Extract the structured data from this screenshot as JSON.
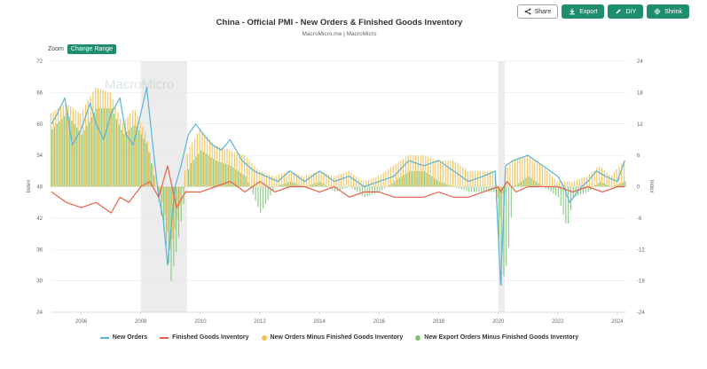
{
  "toolbar": {
    "share": {
      "label": "Share",
      "icon": "share-icon"
    },
    "export": {
      "label": "Export",
      "icon": "download-icon"
    },
    "diy": {
      "label": "DIY",
      "icon": "pencil-icon"
    },
    "shrink": {
      "label": "Shrink",
      "icon": "shrink-icon"
    }
  },
  "header": {
    "title": "China - Official PMI - New Orders & Finished Goods Inventory",
    "subtitle": "MacroMicro.me | MacroMicro"
  },
  "zoom": {
    "label": "Zoom",
    "button": "Change Range"
  },
  "watermark": "MacroMicro",
  "colors": {
    "new_orders": "#5ab4d6",
    "inventory": "#e8624a",
    "minus": "#f2c04d",
    "export_minus": "#7cc576",
    "recession": "#ececec",
    "grid": "#e6e6e6"
  },
  "chart_data": {
    "type": "line",
    "title": "China - Official PMI - New Orders & Finished Goods Inventory",
    "xlabel": "",
    "ylabel": "Index",
    "y2label": "Index",
    "xlim": [
      2005.0,
      2024.3
    ],
    "ylim": [
      24,
      72
    ],
    "y2lim": [
      -24,
      24
    ],
    "y_ticks": [
      24,
      30,
      36,
      42,
      48,
      54,
      60,
      66,
      72
    ],
    "y2_ticks": [
      -24,
      -18,
      -12,
      -6,
      0,
      6,
      12,
      18,
      24
    ],
    "x_ticks": [
      "2006",
      "2008",
      "2010",
      "2012",
      "2014",
      "2016",
      "2018",
      "2020",
      "2022",
      "2024"
    ],
    "x_tick_values": [
      2006,
      2008,
      2010,
      2012,
      2014,
      2016,
      2018,
      2020,
      2022,
      2024
    ],
    "grid": true,
    "legend_position": "bottom",
    "shaded_periods": [
      [
        2008.0,
        2009.55
      ],
      [
        2020.0,
        2020.22
      ]
    ],
    "series": [
      {
        "name": "New Orders",
        "axis": "left",
        "type": "line",
        "x": [
          2005.0,
          2005.2,
          2005.45,
          2005.7,
          2006.0,
          2006.3,
          2006.5,
          2006.75,
          2007.0,
          2007.3,
          2007.5,
          2007.75,
          2008.0,
          2008.2,
          2008.4,
          2008.6,
          2008.75,
          2008.9,
          2009.0,
          2009.15,
          2009.35,
          2009.6,
          2009.85,
          2010.1,
          2010.4,
          2010.7,
          2011.0,
          2011.4,
          2011.8,
          2012.2,
          2012.6,
          2013.0,
          2013.5,
          2014.0,
          2014.5,
          2015.0,
          2015.5,
          2016.0,
          2016.5,
          2017.0,
          2017.5,
          2018.0,
          2018.5,
          2019.0,
          2019.5,
          2019.9,
          2020.08,
          2020.25,
          2020.5,
          2021.0,
          2021.5,
          2022.0,
          2022.2,
          2022.4,
          2022.8,
          2023.0,
          2023.3,
          2023.6,
          2024.0,
          2024.25
        ],
        "y": [
          60,
          62,
          65,
          56,
          59,
          64,
          60,
          57,
          62,
          65,
          58,
          56,
          62,
          67,
          56,
          46,
          42,
          33,
          39,
          48,
          52,
          58,
          60,
          58,
          56,
          55,
          57,
          53,
          51,
          50,
          49,
          51,
          49,
          51,
          49,
          50,
          48,
          49,
          50,
          53,
          52,
          53,
          51,
          49,
          50,
          51,
          29.3,
          52,
          53,
          54,
          52,
          50,
          48,
          45,
          48,
          49,
          51,
          50,
          49,
          53
        ]
      },
      {
        "name": "Finished Goods Inventory",
        "axis": "left",
        "type": "line",
        "x": [
          2005.0,
          2005.5,
          2006.0,
          2006.5,
          2007.0,
          2007.3,
          2007.6,
          2008.0,
          2008.3,
          2008.6,
          2008.9,
          2009.2,
          2009.5,
          2010.0,
          2010.5,
          2011.0,
          2011.5,
          2012.0,
          2012.5,
          2013.0,
          2013.5,
          2014.0,
          2014.5,
          2015.0,
          2015.5,
          2016.0,
          2016.5,
          2017.0,
          2017.5,
          2018.0,
          2018.5,
          2019.0,
          2019.5,
          2020.0,
          2020.08,
          2020.3,
          2020.6,
          2021.0,
          2021.5,
          2022.0,
          2022.5,
          2023.0,
          2023.5,
          2024.0,
          2024.25
        ],
        "y": [
          47,
          45,
          44,
          45,
          43,
          46,
          45,
          48,
          49,
          46,
          52,
          44,
          47,
          47,
          48,
          49,
          47,
          49,
          47,
          48,
          48,
          47,
          48,
          46,
          47,
          47,
          46,
          46,
          46,
          47,
          46,
          46,
          47,
          48,
          47,
          49,
          47,
          48,
          48,
          48,
          47,
          48,
          47,
          48,
          48
        ]
      },
      {
        "name": "New Orders Minus Finished Goods Inventory",
        "axis": "right",
        "type": "bar",
        "x": [
          2005.0,
          2005.5,
          2006.0,
          2006.5,
          2007.0,
          2007.4,
          2007.8,
          2008.2,
          2008.5,
          2008.8,
          2009.0,
          2009.3,
          2009.6,
          2010.0,
          2010.5,
          2011.0,
          2011.5,
          2012.0,
          2012.5,
          2013.0,
          2013.5,
          2014.0,
          2014.5,
          2015.0,
          2015.5,
          2016.0,
          2016.5,
          2017.0,
          2017.5,
          2018.0,
          2018.5,
          2019.0,
          2019.5,
          2019.9,
          2020.08,
          2020.25,
          2020.5,
          2021.0,
          2021.5,
          2022.0,
          2022.5,
          2023.0,
          2023.4,
          2023.8,
          2024.25
        ],
        "y": [
          14,
          16,
          14,
          19,
          18,
          12,
          15,
          10,
          2,
          -4,
          -12,
          -5,
          7,
          11,
          8,
          7,
          6,
          3,
          2,
          3,
          2,
          3,
          2,
          3,
          1,
          2,
          4,
          6,
          6,
          5,
          5,
          3,
          3,
          3,
          -6,
          3,
          5,
          6,
          4,
          1,
          1,
          2,
          4,
          2,
          5
        ]
      },
      {
        "name": "New Export Orders Minus Finished Goods Inventory",
        "axis": "right",
        "type": "bar",
        "x": [
          2005.0,
          2005.5,
          2006.0,
          2006.5,
          2007.0,
          2007.4,
          2007.8,
          2008.2,
          2008.5,
          2008.8,
          2009.0,
          2009.3,
          2009.6,
          2010.0,
          2010.5,
          2011.0,
          2011.5,
          2012.0,
          2012.5,
          2013.0,
          2013.5,
          2014.0,
          2014.5,
          2015.0,
          2015.5,
          2016.0,
          2016.5,
          2017.0,
          2017.5,
          2018.0,
          2018.5,
          2019.0,
          2019.5,
          2019.9,
          2020.08,
          2020.3,
          2020.5,
          2021.0,
          2021.5,
          2022.0,
          2022.3,
          2022.5,
          2023.0,
          2023.4,
          2023.8,
          2024.25
        ],
        "y": [
          11,
          14,
          10,
          15,
          15,
          10,
          12,
          8,
          0,
          -10,
          -18,
          -8,
          4,
          7,
          5,
          4,
          2,
          -5,
          0,
          1,
          0,
          1,
          -1,
          0,
          -2,
          -1,
          1,
          3,
          3,
          1,
          0,
          -1,
          -1,
          -1,
          -19,
          -14,
          0,
          2,
          0,
          -2,
          -8,
          -2,
          -1,
          1,
          0,
          1
        ]
      }
    ]
  },
  "legend": [
    {
      "label": "New Orders",
      "kind": "line",
      "color": "#5ab4d6"
    },
    {
      "label": "Finished Goods Inventory",
      "kind": "line",
      "color": "#e8624a"
    },
    {
      "label": "New Orders Minus Finished Goods Inventory",
      "kind": "dot",
      "color": "#f2c04d"
    },
    {
      "label": "New Export Orders Minus Finished Goods Inventory",
      "kind": "dot",
      "color": "#7cc576"
    }
  ]
}
